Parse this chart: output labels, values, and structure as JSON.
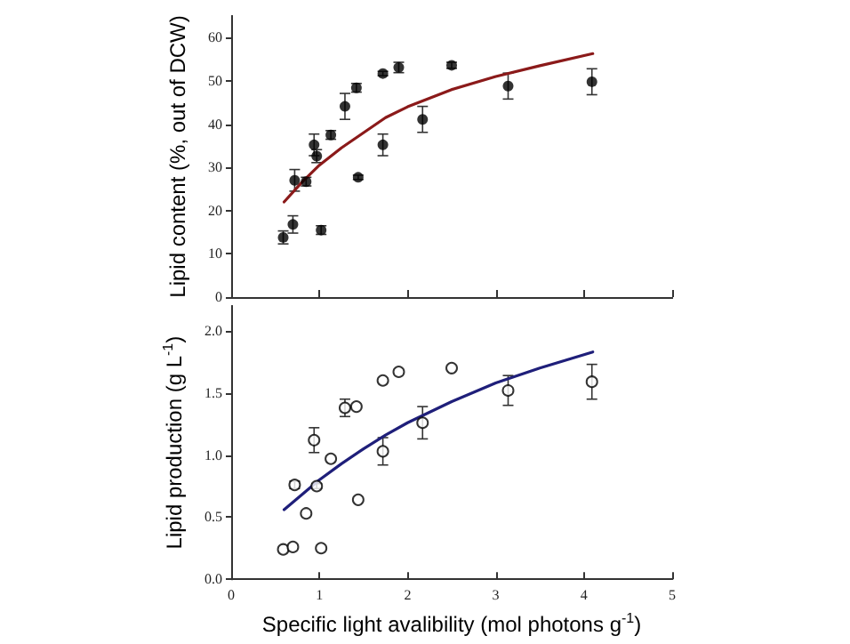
{
  "chart_data": [
    {
      "type": "scatter",
      "ylabel": "Lipid content (%, out of DCW)",
      "xlim": [
        0,
        5
      ],
      "xticks": [
        0,
        1,
        2,
        3,
        4,
        5
      ],
      "ylim": [
        0,
        65
      ],
      "yticks": [
        0,
        10,
        20,
        30,
        40,
        50,
        60
      ],
      "tick_labels": "y",
      "grid": false,
      "series": [
        {
          "type": "scatter",
          "color": "#000000",
          "marker": "circle",
          "x": [
            0.59,
            0.7,
            0.72,
            0.85,
            0.94,
            0.97,
            1.02,
            1.13,
            1.29,
            1.42,
            1.44,
            1.72,
            1.72,
            1.9,
            2.17,
            2.5,
            3.14,
            4.09
          ],
          "values": [
            13.8,
            16.8,
            27,
            26.7,
            35.2,
            32.6,
            15.5,
            37.5,
            44.1,
            48.4,
            27.7,
            51.7,
            35.2,
            53.1,
            41.1,
            53.6,
            48.8,
            49.8
          ],
          "errors": [
            1.5,
            2,
            2.5,
            1,
            2.5,
            1.5,
            1,
            1,
            3,
            1,
            0.5,
            0.5,
            2.5,
            1.2,
            3,
            0.7,
            3,
            3
          ]
        },
        {
          "type": "line",
          "color": "#8b1a1a",
          "marker": "none",
          "x": [
            0.6,
            0.8,
            1.0,
            1.25,
            1.5,
            1.75,
            2,
            2.5,
            3,
            3.5,
            4.1
          ],
          "values": [
            22,
            26.5,
            30.5,
            34.5,
            38,
            41.5,
            44,
            48,
            51,
            53.5,
            56.3
          ]
        }
      ]
    },
    {
      "type": "scatter",
      "xlabel": "Specific light avalibility (mol photons g$^{-1}$)",
      "ylabel": "Lipid production (g L$^{-1}$)",
      "xlim": [
        0,
        5
      ],
      "xticks": [
        0,
        1,
        2,
        3,
        4,
        5
      ],
      "ylim": [
        0,
        2.2
      ],
      "yticks": [
        {
          "value": 0,
          "label": "0.0"
        },
        {
          "value": 0.5,
          "label": "0.5"
        },
        {
          "value": 1,
          "label": "1.0"
        },
        {
          "value": 1.5,
          "label": "1.5"
        },
        {
          "value": 2,
          "label": "2.0"
        }
      ],
      "grid": false,
      "series": [
        {
          "type": "scatter",
          "color": "#000000",
          "marker": "circle",
          "x": [
            0.59,
            0.7,
            0.72,
            0.85,
            0.94,
            0.97,
            1.02,
            1.13,
            1.29,
            1.42,
            1.44,
            1.72,
            1.72,
            1.9,
            2.17,
            2.5,
            3.14,
            4.09
          ],
          "values": [
            0.24,
            0.26,
            0.76,
            0.53,
            1.12,
            0.75,
            0.25,
            0.97,
            1.38,
            1.39,
            0.64,
            1.6,
            1.03,
            1.67,
            1.26,
            1.7,
            1.52,
            1.59
          ],
          "errors": [
            null,
            null,
            0.03,
            null,
            0.1,
            0.02,
            null,
            null,
            0.07,
            null,
            null,
            null,
            0.11,
            null,
            0.13,
            null,
            0.12,
            0.14
          ]
        },
        {
          "type": "line",
          "color": "#1f1f7a",
          "marker": "none",
          "x": [
            0.6,
            0.8,
            1.0,
            1.25,
            1.5,
            1.75,
            2,
            2.5,
            3,
            3.5,
            4.1
          ],
          "values": [
            0.56,
            0.68,
            0.8,
            0.93,
            1.05,
            1.16,
            1.26,
            1.43,
            1.58,
            1.7,
            1.83
          ]
        }
      ]
    }
  ]
}
